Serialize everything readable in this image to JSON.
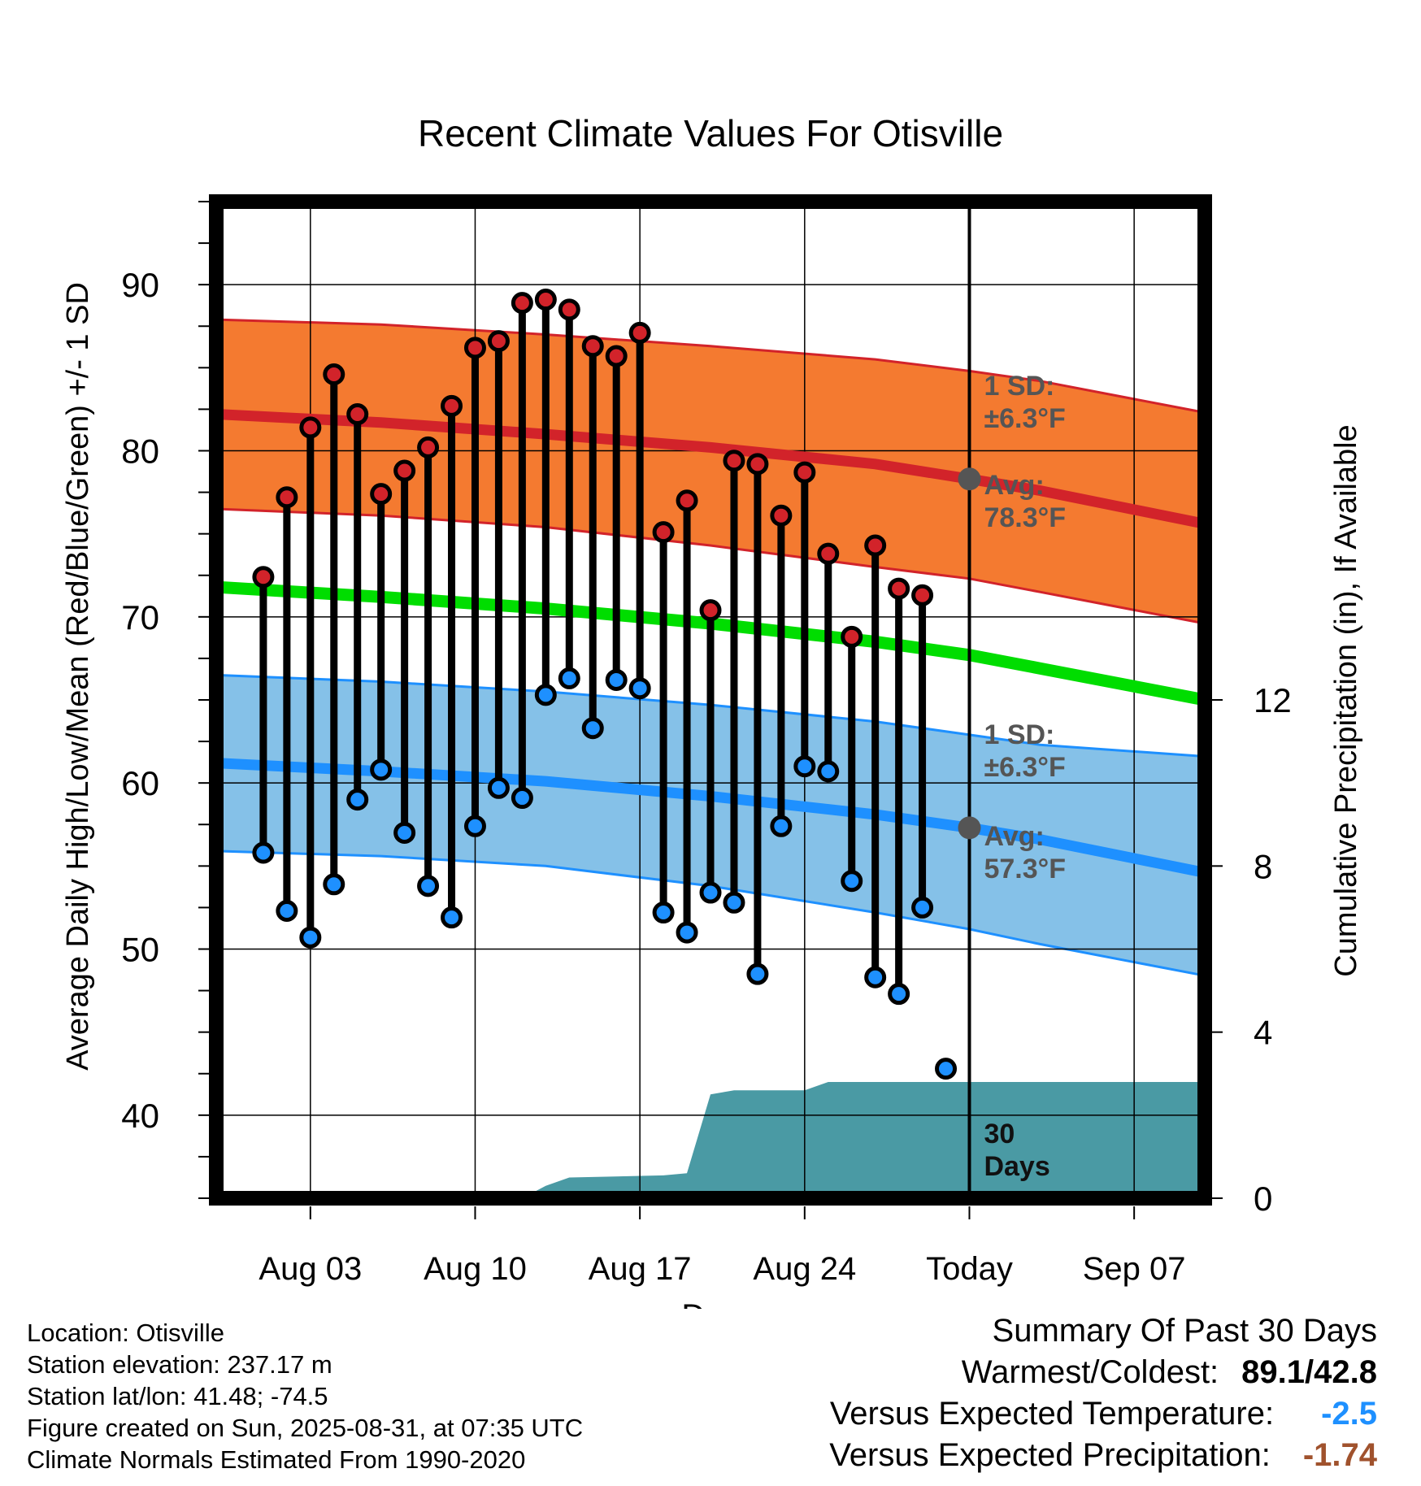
{
  "chart_data": {
    "type": "line",
    "title": "Recent Climate Values For Otisville",
    "xlabel": "Day",
    "ylabel": "Average Daily High/Low/Mean (Red/Blue/Green) +/- 1 SD",
    "y2label": "Cumulative Precipitation (in), If Available",
    "ylim": [
      35,
      95
    ],
    "y2lim": [
      0,
      24
    ],
    "yticks": [
      "40",
      "50",
      "60",
      "70",
      "80",
      "90"
    ],
    "y2ticks": [
      "0",
      "4",
      "8",
      "12"
    ],
    "xlim": [
      "2025-07-30",
      "2025-09-10"
    ],
    "xticks": [
      {
        "date": "2025-08-03",
        "label": "Aug 03"
      },
      {
        "date": "2025-08-10",
        "label": "Aug 10"
      },
      {
        "date": "2025-08-17",
        "label": "Aug 17"
      },
      {
        "date": "2025-08-24",
        "label": "Aug 24"
      },
      {
        "date": "2025-08-31",
        "label": "Today"
      },
      {
        "date": "2025-09-07",
        "label": "Sep 07"
      }
    ],
    "today": "2025-08-31",
    "days": [
      "2025-08-01",
      "2025-08-02",
      "2025-08-03",
      "2025-08-04",
      "2025-08-05",
      "2025-08-06",
      "2025-08-07",
      "2025-08-08",
      "2025-08-09",
      "2025-08-10",
      "2025-08-11",
      "2025-08-12",
      "2025-08-13",
      "2025-08-14",
      "2025-08-15",
      "2025-08-16",
      "2025-08-17",
      "2025-08-18",
      "2025-08-19",
      "2025-08-20",
      "2025-08-21",
      "2025-08-22",
      "2025-08-23",
      "2025-08-24",
      "2025-08-25",
      "2025-08-26",
      "2025-08-27",
      "2025-08-28",
      "2025-08-29",
      "2025-08-30"
    ],
    "highs": [
      72.4,
      77.2,
      81.4,
      84.6,
      82.2,
      77.4,
      78.8,
      80.2,
      82.7,
      86.2,
      86.6,
      88.9,
      89.1,
      88.5,
      86.3,
      85.7,
      87.1,
      75.1,
      77.0,
      70.4,
      79.4,
      79.2,
      76.1,
      78.7,
      73.8,
      68.8,
      74.3,
      71.7,
      71.3,
      null
    ],
    "lows": [
      55.8,
      52.3,
      50.7,
      53.9,
      59.0,
      60.8,
      57.0,
      53.8,
      51.9,
      57.4,
      59.7,
      59.1,
      65.3,
      66.3,
      63.3,
      66.2,
      65.7,
      52.2,
      51.0,
      53.4,
      52.8,
      48.5,
      57.4,
      61.0,
      60.7,
      54.1,
      48.3,
      47.3,
      52.5,
      42.8
    ],
    "normals_dates": [
      "2025-07-30",
      "2025-08-06",
      "2025-08-13",
      "2025-08-20",
      "2025-08-27",
      "2025-08-31",
      "2025-09-03",
      "2025-09-10"
    ],
    "normal_high": [
      82.2,
      81.7,
      81.0,
      80.2,
      79.2,
      78.3,
      77.6,
      75.6
    ],
    "normal_high_upper": [
      87.9,
      87.6,
      87.0,
      86.3,
      85.5,
      84.8,
      84.2,
      82.3
    ],
    "normal_high_lower": [
      76.5,
      76.1,
      75.4,
      74.3,
      73.0,
      72.3,
      71.5,
      69.6
    ],
    "normal_mean": [
      71.8,
      71.2,
      70.5,
      69.6,
      68.5,
      67.7,
      66.9,
      65.0
    ],
    "normal_low": [
      61.2,
      60.7,
      60.1,
      59.2,
      58.1,
      57.3,
      56.6,
      54.6
    ],
    "normal_low_upper": [
      66.5,
      66.1,
      65.5,
      64.7,
      63.7,
      62.9,
      62.3,
      61.6
    ],
    "normal_low_lower": [
      55.9,
      55.6,
      55.0,
      53.8,
      52.2,
      51.2,
      50.3,
      48.4
    ],
    "precip_dates": [
      "2025-07-30",
      "2025-08-12",
      "2025-08-13",
      "2025-08-14",
      "2025-08-18",
      "2025-08-19",
      "2025-08-20",
      "2025-08-21",
      "2025-08-24",
      "2025-08-25",
      "2025-08-31",
      "2025-09-10"
    ],
    "precip_cum": [
      0,
      0,
      0.3,
      0.5,
      0.55,
      0.6,
      2.5,
      2.6,
      2.6,
      2.8,
      2.8,
      2.8
    ],
    "annotations": {
      "high_sd": [
        "1 SD:",
        "±6.3°F"
      ],
      "high_avg": [
        "Avg:",
        "78.3°F"
      ],
      "low_sd": [
        "1 SD:",
        "±6.3°F"
      ],
      "low_avg": [
        "Avg:",
        "57.3°F"
      ],
      "period": [
        "30",
        "Days"
      ]
    },
    "colors": {
      "high_band": "#f47a30",
      "high_line": "#d2232a",
      "low_band": "#85c1e8",
      "low_line": "#1e90ff",
      "mean_line": "#00dd00",
      "precip": "#4a9aa4",
      "high_marker": "#d2232a",
      "low_marker": "#1e90ff",
      "today_marker": "#555555"
    },
    "grid": true
  },
  "location": {
    "line1": "Location: Otisville",
    "line2": "Station elevation: 237.17 m",
    "line3": "Station lat/lon: 41.48; -74.5",
    "line4": "Figure created on Sun, 2025-08-31, at 07:35 UTC",
    "line5": "Climate Normals Estimated From 1990-2020"
  },
  "summary": {
    "heading": "Summary Of Past 30 Days",
    "warmest_label": "Warmest/Coldest:",
    "warmest_value": "89.1/42.8",
    "temp_label": "Versus Expected Temperature:",
    "temp_value": "-2.5",
    "temp_color": "#1e90ff",
    "precip_label": "Versus Expected Precipitation:",
    "precip_value": "-1.74",
    "precip_color": "#a0522d"
  }
}
